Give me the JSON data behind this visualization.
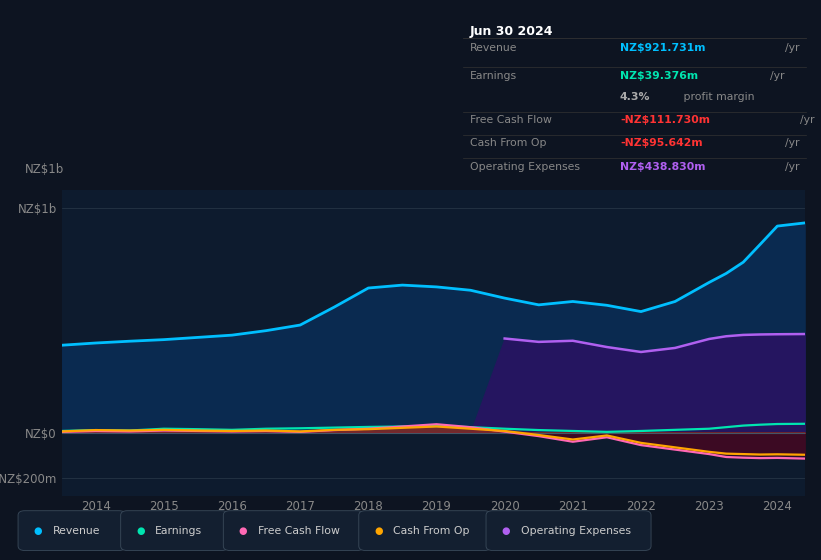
{
  "background_color": "#0d1421",
  "plot_bg_color": "#0d1b2e",
  "years": [
    2013.5,
    2014,
    2014.5,
    2015,
    2015.5,
    2016,
    2016.5,
    2017,
    2017.5,
    2018,
    2018.5,
    2019,
    2019.5,
    2020,
    2020.5,
    2021,
    2021.5,
    2022,
    2022.5,
    2023,
    2023.25,
    2023.5,
    2023.75,
    2024,
    2024.4
  ],
  "revenue": [
    390,
    400,
    408,
    415,
    425,
    435,
    455,
    480,
    560,
    645,
    658,
    650,
    635,
    600,
    570,
    585,
    568,
    540,
    585,
    670,
    710,
    760,
    840,
    921,
    935
  ],
  "earnings": [
    8,
    12,
    10,
    18,
    16,
    13,
    18,
    20,
    23,
    26,
    28,
    30,
    25,
    18,
    12,
    8,
    4,
    8,
    13,
    18,
    25,
    32,
    36,
    39,
    40
  ],
  "free_cash_flow": [
    4,
    8,
    6,
    10,
    8,
    6,
    8,
    4,
    12,
    18,
    28,
    38,
    25,
    5,
    -15,
    -40,
    -20,
    -55,
    -75,
    -95,
    -108,
    -111,
    -113,
    -112,
    -115
  ],
  "cash_from_op": [
    6,
    12,
    10,
    13,
    10,
    8,
    10,
    6,
    13,
    16,
    22,
    28,
    18,
    8,
    -10,
    -30,
    -12,
    -45,
    -65,
    -85,
    -93,
    -95,
    -97,
    -96,
    -98
  ],
  "op_expenses": [
    0,
    0,
    0,
    0,
    0,
    0,
    0,
    0,
    0,
    0,
    0,
    0,
    0,
    420,
    405,
    410,
    382,
    360,
    378,
    418,
    430,
    436,
    438,
    439,
    440
  ],
  "revenue_color": "#00bfff",
  "earnings_color": "#00e5b0",
  "fcf_color": "#ff69b4",
  "cfo_color": "#ffa500",
  "opex_color": "#b060f0",
  "revenue_fill_color": "#0a2a50",
  "opex_fill_color": "#251560",
  "neg_fill_color": "#3d0a18",
  "ylim_min": -280,
  "ylim_max": 1080,
  "yticks": [
    -200,
    0,
    1000
  ],
  "ytick_labels": [
    "-NZ$200m",
    "NZ$0",
    "NZ$1b"
  ],
  "xlabel_years": [
    "2014",
    "2015",
    "2016",
    "2017",
    "2018",
    "2019",
    "2020",
    "2021",
    "2022",
    "2023",
    "2024"
  ],
  "xtick_positions": [
    2014,
    2015,
    2016,
    2017,
    2018,
    2019,
    2020,
    2021,
    2022,
    2023,
    2024
  ],
  "info_box": {
    "title": "Jun 30 2024",
    "rows": [
      {
        "label": "Revenue",
        "value": "NZ$921.731m",
        "unit": "/yr",
        "value_color": "#00bfff"
      },
      {
        "label": "Earnings",
        "value": "NZ$39.376m",
        "unit": "/yr",
        "value_color": "#00e5b0"
      },
      {
        "label": "",
        "value": "4.3%",
        "unit": " profit margin",
        "value_color": "#aaaaaa"
      },
      {
        "label": "Free Cash Flow",
        "value": "-NZ$111.730m",
        "unit": "/yr",
        "value_color": "#ff3333"
      },
      {
        "label": "Cash From Op",
        "value": "-NZ$95.642m",
        "unit": "/yr",
        "value_color": "#ff3333"
      },
      {
        "label": "Operating Expenses",
        "value": "NZ$438.830m",
        "unit": "/yr",
        "value_color": "#b060f0"
      }
    ]
  },
  "legend_items": [
    {
      "label": "Revenue",
      "color": "#00bfff"
    },
    {
      "label": "Earnings",
      "color": "#00e5b0"
    },
    {
      "label": "Free Cash Flow",
      "color": "#ff69b4"
    },
    {
      "label": "Cash From Op",
      "color": "#ffa500"
    },
    {
      "label": "Operating Expenses",
      "color": "#b060f0"
    }
  ]
}
